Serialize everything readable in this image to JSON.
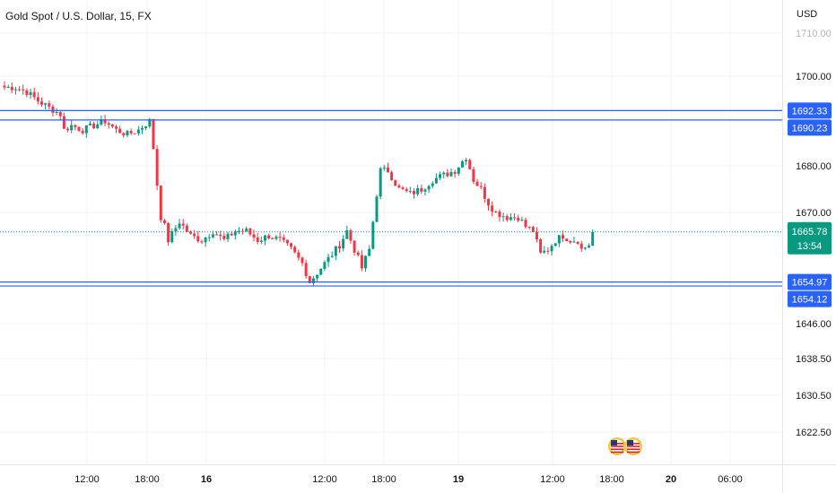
{
  "header": {
    "title": "Gold Spot / U.S. Dollar, 15, FX",
    "currency": "USD"
  },
  "colors": {
    "up": "#089981",
    "down": "#f23645",
    "hline": "#2962ff",
    "grid": "#f0f3fa",
    "current": "#089981"
  },
  "chart_data": {
    "type": "candlestick",
    "y_ticks": [
      1710.0,
      1700.0,
      1680.0,
      1670.0,
      1646.0,
      1638.5,
      1630.5,
      1622.5
    ],
    "x_ticks": [
      "12:00",
      "18:00",
      "16",
      "12:00",
      "18:00",
      "19",
      "12:00",
      "18:00",
      "20",
      "06:00"
    ],
    "horizontal_lines": [
      {
        "label": "1692.33",
        "value": 1692.33
      },
      {
        "label": "1690.23",
        "value": 1690.23
      },
      {
        "label": "1654.97",
        "value": 1654.97
      },
      {
        "label": "1654.12",
        "value": 1654.12
      }
    ],
    "current_price": {
      "label": "1665.78",
      "value": 1665.78,
      "countdown": "13:54"
    },
    "close_path": [
      [
        0,
        1697.5
      ],
      [
        3,
        1697.5
      ],
      [
        6,
        1696.5
      ],
      [
        9,
        1694.5
      ],
      [
        12,
        1693
      ],
      [
        15,
        1691.5
      ],
      [
        16,
        1688
      ],
      [
        18,
        1689
      ],
      [
        21,
        1688
      ],
      [
        24,
        1689
      ],
      [
        27,
        1690
      ],
      [
        30,
        1688
      ],
      [
        33,
        1687
      ],
      [
        36,
        1688
      ],
      [
        39,
        1690
      ],
      [
        40,
        1684
      ],
      [
        41,
        1676
      ],
      [
        42,
        1669
      ],
      [
        43,
        1667
      ],
      [
        44,
        1664
      ],
      [
        47,
        1668
      ],
      [
        50,
        1665
      ],
      [
        53,
        1664
      ],
      [
        56,
        1666
      ],
      [
        59,
        1664
      ],
      [
        62,
        1666
      ],
      [
        65,
        1666
      ],
      [
        68,
        1664
      ],
      [
        71,
        1665
      ],
      [
        74,
        1664
      ],
      [
        77,
        1662
      ],
      [
        80,
        1659
      ],
      [
        82,
        1655
      ],
      [
        85,
        1658
      ],
      [
        88,
        1661
      ],
      [
        90,
        1663
      ],
      [
        92,
        1666
      ],
      [
        94,
        1662
      ],
      [
        96,
        1658
      ],
      [
        98,
        1662
      ],
      [
        99,
        1668
      ],
      [
        100,
        1674
      ],
      [
        101,
        1679
      ],
      [
        103,
        1679
      ],
      [
        106,
        1675
      ],
      [
        109,
        1674
      ],
      [
        112,
        1675
      ],
      [
        115,
        1677
      ],
      [
        118,
        1678
      ],
      [
        121,
        1679
      ],
      [
        124,
        1682
      ],
      [
        126,
        1677
      ],
      [
        128,
        1675
      ],
      [
        130,
        1672
      ],
      [
        132,
        1670
      ],
      [
        135,
        1669
      ],
      [
        138,
        1669
      ],
      [
        140,
        1667
      ],
      [
        142,
        1666
      ],
      [
        144,
        1661
      ],
      [
        146,
        1662
      ],
      [
        148,
        1664
      ],
      [
        150,
        1665
      ],
      [
        152,
        1664
      ],
      [
        154,
        1664
      ],
      [
        155,
        1662
      ],
      [
        157,
        1663
      ],
      [
        158,
        1665.8
      ]
    ],
    "events": [
      "US",
      "US"
    ]
  }
}
